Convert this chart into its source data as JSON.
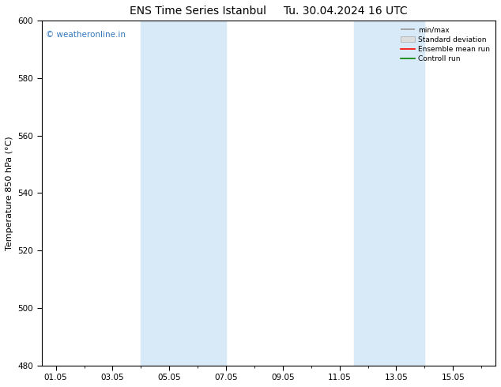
{
  "title": "ENS Time Series Istanbul",
  "title2": "Tu. 30.04.2024 16 UTC",
  "ylabel": "Temperature 850 hPa (°C)",
  "ylim": [
    480,
    600
  ],
  "yticks": [
    480,
    500,
    520,
    540,
    560,
    580,
    600
  ],
  "xtick_labels": [
    "01.05",
    "03.05",
    "05.05",
    "07.05",
    "09.05",
    "11.05",
    "13.05",
    "15.05"
  ],
  "xtick_positions": [
    0,
    2,
    4,
    6,
    8,
    10,
    12,
    14
  ],
  "xlim": [
    -0.5,
    15.5
  ],
  "shade_bands": [
    {
      "start": 3.0,
      "end": 4.0,
      "color": "#d8eaf8"
    },
    {
      "start": 4.0,
      "end": 6.0,
      "color": "#d8eaf8"
    },
    {
      "start": 10.5,
      "end": 11.5,
      "color": "#d8eaf8"
    },
    {
      "start": 11.5,
      "end": 13.0,
      "color": "#d8eaf8"
    }
  ],
  "watermark": "© weatheronline.in",
  "watermark_color": "#3377bb",
  "legend_labels": [
    "min/max",
    "Standard deviation",
    "Ensemble mean run",
    "Controll run"
  ],
  "legend_colors": [
    "#999999",
    "#cccccc",
    "#ff0000",
    "#008000"
  ],
  "background_color": "#ffffff",
  "title_fontsize": 10,
  "tick_fontsize": 7.5,
  "ylabel_fontsize": 8
}
